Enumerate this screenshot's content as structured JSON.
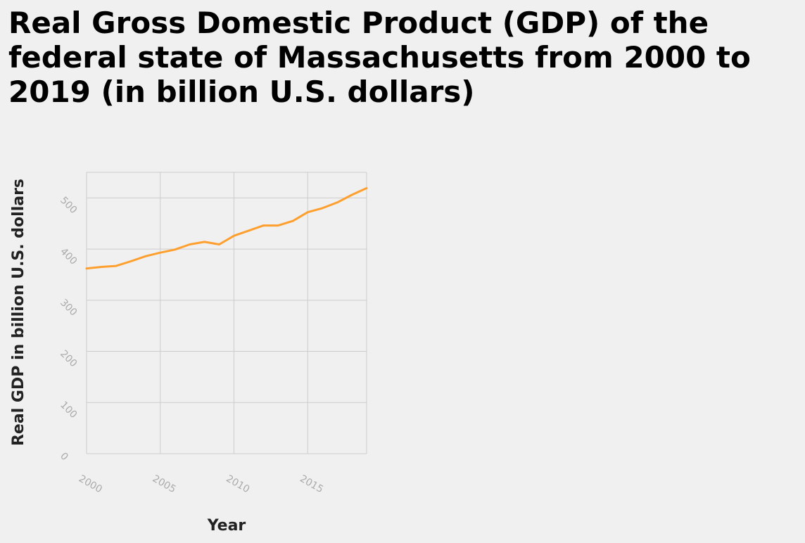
{
  "chart_data": {
    "type": "line",
    "title": "Real Gross Domestic Product (GDP) of the federal state of Massachusetts from 2000 to 2019 (in billion U.S. dollars)",
    "xlabel": "Year",
    "ylabel": "Real GDP in billion U.S. dollars",
    "xlim": [
      2000,
      2019
    ],
    "ylim": [
      0,
      550
    ],
    "x_ticks": [
      2000,
      2005,
      2010,
      2015
    ],
    "y_ticks": [
      0,
      100,
      200,
      300,
      400,
      500
    ],
    "grid": true,
    "legend": "none",
    "line_color": "#ff9f2e",
    "grid_color": "#cccccc",
    "series": [
      {
        "x": [
          2000,
          2001,
          2002,
          2003,
          2004,
          2005,
          2006,
          2007,
          2008,
          2009,
          2010,
          2011,
          2012,
          2013,
          2014,
          2015,
          2016,
          2017,
          2018,
          2019
        ],
        "values": [
          362,
          365,
          367,
          376,
          386,
          393,
          399,
          409,
          414,
          409,
          426,
          436,
          446,
          446,
          455,
          472,
          480,
          491,
          506,
          519
        ]
      }
    ]
  }
}
